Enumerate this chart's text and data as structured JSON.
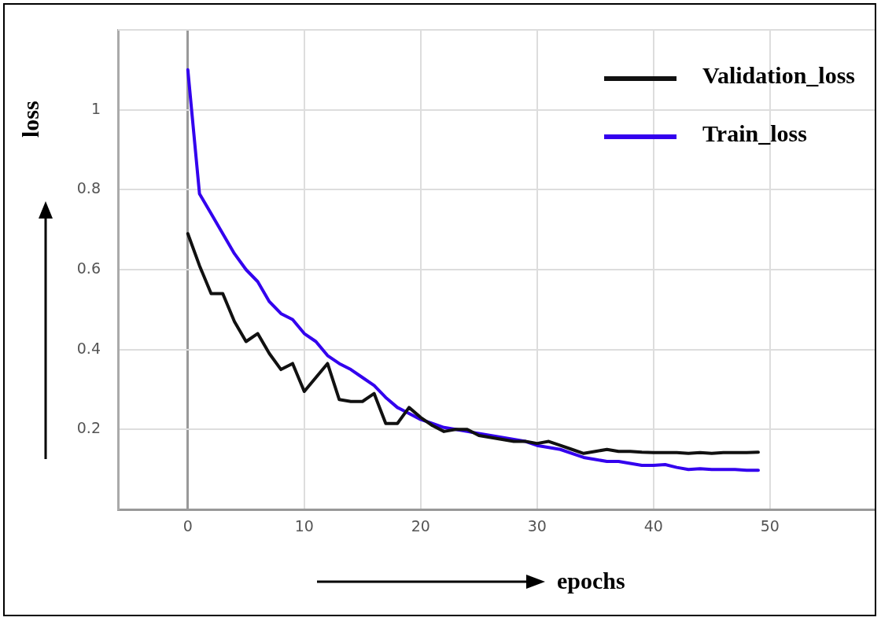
{
  "chart_data": {
    "type": "line",
    "xlabel": "epochs",
    "ylabel": "loss",
    "x": [
      0,
      1,
      2,
      3,
      4,
      5,
      6,
      7,
      8,
      9,
      10,
      11,
      12,
      13,
      14,
      15,
      16,
      17,
      18,
      19,
      20,
      21,
      22,
      23,
      24,
      25,
      26,
      27,
      28,
      29,
      30,
      31,
      32,
      33,
      34,
      35,
      36,
      37,
      38,
      39,
      40,
      41,
      42,
      43,
      44,
      45,
      46,
      47,
      48,
      49
    ],
    "series": [
      {
        "name": "Validation_loss",
        "color": "#111111",
        "values": [
          0.69,
          0.61,
          0.54,
          0.54,
          0.47,
          0.42,
          0.44,
          0.39,
          0.35,
          0.365,
          0.295,
          0.33,
          0.365,
          0.275,
          0.27,
          0.27,
          0.29,
          0.215,
          0.215,
          0.255,
          0.23,
          0.21,
          0.195,
          0.2,
          0.2,
          0.185,
          0.18,
          0.175,
          0.17,
          0.17,
          0.165,
          0.17,
          0.16,
          0.15,
          0.14,
          0.145,
          0.15,
          0.145,
          0.145,
          0.143,
          0.142,
          0.142,
          0.142,
          0.14,
          0.142,
          0.14,
          0.142,
          0.142,
          0.142,
          0.143
        ]
      },
      {
        "name": "Train_loss",
        "color": "#3300ee",
        "values": [
          1.1,
          0.79,
          0.74,
          0.69,
          0.64,
          0.6,
          0.57,
          0.52,
          0.49,
          0.475,
          0.44,
          0.42,
          0.385,
          0.365,
          0.35,
          0.33,
          0.31,
          0.28,
          0.255,
          0.24,
          0.225,
          0.215,
          0.205,
          0.2,
          0.195,
          0.19,
          0.185,
          0.18,
          0.175,
          0.17,
          0.16,
          0.155,
          0.15,
          0.14,
          0.13,
          0.125,
          0.12,
          0.12,
          0.115,
          0.11,
          0.11,
          0.112,
          0.105,
          0.1,
          0.102,
          0.1,
          0.1,
          0.1,
          0.098,
          0.098
        ]
      }
    ],
    "xlim": [
      -6,
      59
    ],
    "xticks": [
      0,
      10,
      20,
      30,
      40,
      50
    ],
    "ylim": [
      0,
      1.2
    ],
    "yticks": [
      0.2,
      0.4,
      0.6,
      0.8,
      1
    ],
    "grid": true,
    "legend": "top right",
    "marker": "none",
    "line_style": "solid"
  }
}
